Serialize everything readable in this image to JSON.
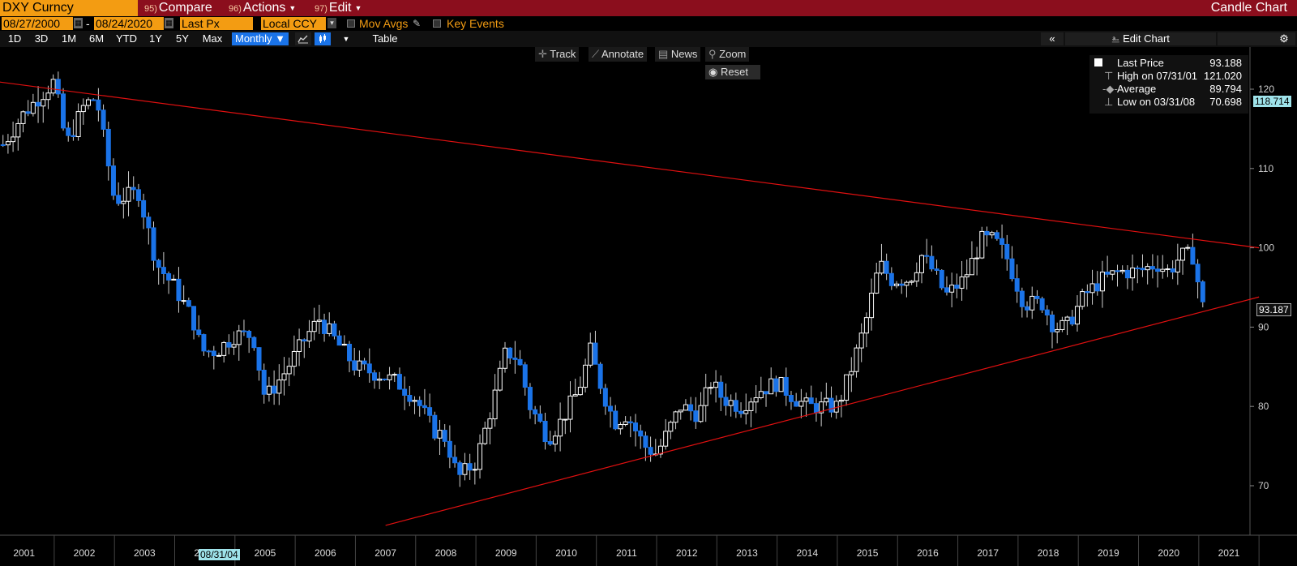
{
  "header": {
    "security": "DXY Curncy",
    "menu": [
      {
        "num": "95)",
        "label": "Compare"
      },
      {
        "num": "96)",
        "label": "Actions"
      },
      {
        "num": "97)",
        "label": "Edit"
      }
    ],
    "chart_type": "Candle Chart"
  },
  "settings": {
    "start_date": "08/27/2000",
    "date_sep": "-",
    "end_date": "08/24/2020",
    "field": "Last Px",
    "currency": "Local CCY",
    "mov_avgs": "Mov Avgs",
    "key_events": "Key Events"
  },
  "periods": [
    "1D",
    "3D",
    "1M",
    "6M",
    "YTD",
    "1Y",
    "5Y",
    "Max"
  ],
  "frequency": "Monthly ▼",
  "table_label": "Table",
  "edit_chart": "Edit Chart",
  "tools": {
    "track": "Track",
    "annotate": "Annotate",
    "news": "News",
    "zoom": "Zoom",
    "reset": "Reset"
  },
  "legend": {
    "last_label": "Last Price",
    "last_value": "93.188",
    "high_label": "High on 07/31/01",
    "high_value": "121.020",
    "avg_label": "Average",
    "avg_value": "89.794",
    "low_label": "Low on 03/31/08",
    "low_value": "70.698"
  },
  "price_tags": {
    "top": "118.714",
    "last": "93.187"
  },
  "crosshair_date": "08/31/04",
  "colors": {
    "up": "#ffffff",
    "down": "#1a73e8",
    "trendline": "#e01010",
    "header": "#8b0e1d",
    "accent": "#f39c12"
  },
  "chart_data": {
    "type": "candlestick",
    "frequency": "Monthly",
    "ylim": [
      65,
      123
    ],
    "y_ticks": [
      70,
      80,
      90,
      100,
      110,
      120
    ],
    "x_ticks": [
      "2001",
      "2002",
      "2003",
      "2004",
      "2005",
      "2006",
      "2007",
      "2008",
      "2009",
      "2010",
      "2011",
      "2012",
      "2013",
      "2014",
      "2015",
      "2016",
      "2017",
      "2018",
      "2019",
      "2020",
      "2021"
    ],
    "trendlines": [
      {
        "from": [
          2000.0,
          121.5
        ],
        "to": [
          2021.5,
          100.0
        ]
      },
      {
        "from": [
          2007.0,
          65.0
        ],
        "to": [
          2021.5,
          93.8
        ]
      }
    ],
    "close_path": [
      [
        2000.65,
        113
      ],
      [
        2001.0,
        117
      ],
      [
        2001.5,
        121
      ],
      [
        2001.7,
        113
      ],
      [
        2002.0,
        118
      ],
      [
        2002.2,
        119
      ],
      [
        2002.5,
        106
      ],
      [
        2002.9,
        107
      ],
      [
        2003.2,
        98
      ],
      [
        2003.5,
        95
      ],
      [
        2003.8,
        91
      ],
      [
        2003.95,
        87
      ],
      [
        2004.2,
        87
      ],
      [
        2004.5,
        89
      ],
      [
        2004.8,
        89
      ],
      [
        2005.0,
        81
      ],
      [
        2005.3,
        84
      ],
      [
        2005.7,
        89
      ],
      [
        2005.9,
        91
      ],
      [
        2006.1,
        89
      ],
      [
        2006.5,
        85
      ],
      [
        2006.9,
        84
      ],
      [
        2007.2,
        83
      ],
      [
        2007.5,
        81
      ],
      [
        2007.8,
        77
      ],
      [
        2008.0,
        76
      ],
      [
        2008.2,
        71
      ],
      [
        2008.5,
        73
      ],
      [
        2008.8,
        81
      ],
      [
        2009.0,
        87
      ],
      [
        2009.2,
        86
      ],
      [
        2009.4,
        80
      ],
      [
        2009.7,
        76
      ],
      [
        2009.9,
        78
      ],
      [
        2010.2,
        82
      ],
      [
        2010.4,
        87
      ],
      [
        2010.6,
        82
      ],
      [
        2010.8,
        78
      ],
      [
        2011.0,
        79
      ],
      [
        2011.3,
        75
      ],
      [
        2011.5,
        74
      ],
      [
        2011.7,
        77
      ],
      [
        2011.9,
        80
      ],
      [
        2012.2,
        79
      ],
      [
        2012.4,
        83
      ],
      [
        2012.6,
        81
      ],
      [
        2012.9,
        80
      ],
      [
        2013.2,
        82
      ],
      [
        2013.5,
        83
      ],
      [
        2013.8,
        81
      ],
      [
        2014.0,
        80
      ],
      [
        2014.3,
        80
      ],
      [
        2014.5,
        80
      ],
      [
        2014.7,
        84
      ],
      [
        2014.95,
        90
      ],
      [
        2015.2,
        98
      ],
      [
        2015.4,
        96
      ],
      [
        2015.7,
        96
      ],
      [
        2015.9,
        99
      ],
      [
        2016.1,
        97
      ],
      [
        2016.3,
        94
      ],
      [
        2016.6,
        96
      ],
      [
        2016.9,
        101
      ],
      [
        2017.1,
        101
      ],
      [
        2017.3,
        99
      ],
      [
        2017.6,
        93
      ],
      [
        2017.9,
        93
      ],
      [
        2018.1,
        90
      ],
      [
        2018.3,
        90
      ],
      [
        2018.6,
        94
      ],
      [
        2018.9,
        96
      ],
      [
        2019.2,
        97
      ],
      [
        2019.5,
        97
      ],
      [
        2019.8,
        98
      ],
      [
        2020.0,
        97
      ],
      [
        2020.2,
        99
      ],
      [
        2020.4,
        99
      ],
      [
        2020.55,
        93.19
      ]
    ]
  }
}
